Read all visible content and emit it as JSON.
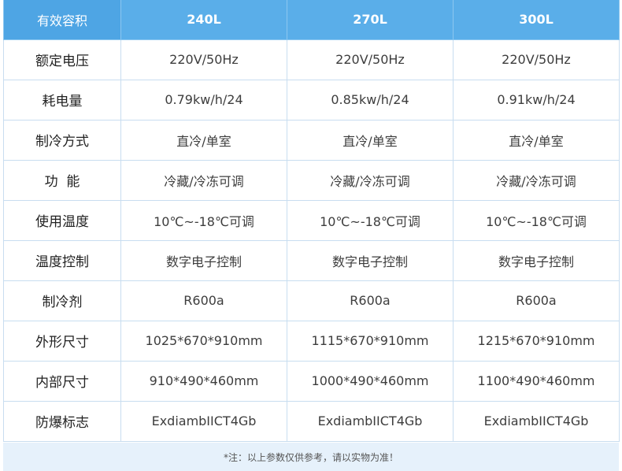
{
  "header": {
    "corner_label": "有效容积",
    "columns": [
      "240L",
      "270L",
      "300L"
    ]
  },
  "rows": [
    {
      "label": "额定电压",
      "values": [
        "220V/50Hz",
        "220V/50Hz",
        "220V/50Hz"
      ]
    },
    {
      "label": "耗电量",
      "values": [
        "0.79kw/h/24",
        "0.85kw/h/24",
        "0.91kw/h/24"
      ]
    },
    {
      "label": "制冷方式",
      "values": [
        "直冷/单室",
        "直冷/单室",
        "直冷/单室"
      ]
    },
    {
      "label": "功  能",
      "values": [
        "冷藏/冷冻可调",
        "冷藏/冷冻可调",
        "冷藏/冷冻可调"
      ]
    },
    {
      "label": "使用温度",
      "values": [
        "10℃~-18℃可调",
        "10℃~-18℃可调",
        "10℃~-18℃可调"
      ]
    },
    {
      "label": "温度控制",
      "values": [
        "数字电子控制",
        "数字电子控制",
        "数字电子控制"
      ]
    },
    {
      "label": "制冷剂",
      "values": [
        "R600a",
        "R600a",
        "R600a"
      ]
    },
    {
      "label": "外形尺寸",
      "values": [
        "1025*670*910mm",
        "1115*670*910mm",
        "1215*670*910mm"
      ]
    },
    {
      "label": "内部尺寸",
      "values": [
        "910*490*460mm",
        "1000*490*460mm",
        "1100*490*460mm"
      ]
    },
    {
      "label": "防爆标志",
      "values": [
        "ExdiambIICT4Gb",
        "ExdiambIICT4Gb",
        "ExdiambIICT4Gb"
      ]
    }
  ],
  "footnote": "*注：以上参数仅供参考，请以实物为准！",
  "colors": {
    "header_bg": "#5aaee9",
    "corner_bg": "#4ea5e4",
    "border": "#c8ddf0",
    "footnote_bg": "#e6f1fb"
  }
}
